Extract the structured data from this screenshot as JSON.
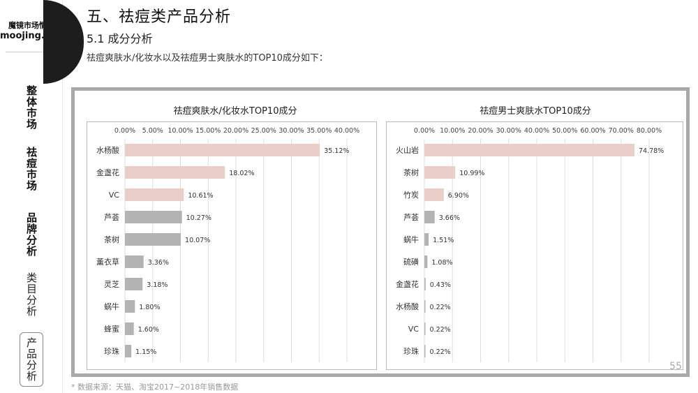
{
  "sidebar": {
    "logo_line1": "魔镜市场情报",
    "logo_line2": "moojing.com",
    "items": [
      {
        "label": "整体市场"
      },
      {
        "label": "祛痘市场"
      },
      {
        "label": "品牌分析"
      },
      {
        "label": "类目分析"
      },
      {
        "label": "产品分析"
      }
    ]
  },
  "header": {
    "title": "五、祛痘类产品分析",
    "subtitle": "5.1 成分分析",
    "description": "祛痘爽肤水/化妆水以及祛痘男士爽肤水的TOP10成分如下："
  },
  "page_number": "55",
  "footnote": "* 数据来源：天猫、淘宝2017~2018年销售数据",
  "colors": {
    "highlight_bar": "#e9cfc8",
    "normal_bar": "#b3b3b3",
    "gridline": "#dddddd",
    "frame": "#a9a9a9"
  },
  "chart_data": [
    {
      "type": "bar",
      "orientation": "horizontal",
      "title": "祛痘爽肤水/化妆水TOP10成分",
      "categories": [
        "水杨酸",
        "金盏花",
        "VC",
        "芦荟",
        "茶树",
        "薰衣草",
        "灵芝",
        "蜗牛",
        "蜂蜜",
        "珍珠"
      ],
      "values": [
        35.12,
        18.02,
        10.61,
        10.27,
        10.07,
        3.36,
        3.18,
        1.8,
        1.6,
        1.15
      ],
      "value_labels": [
        "35.12%",
        "18.02%",
        "10.61%",
        "10.27%",
        "10.07%",
        "3.36%",
        "3.18%",
        "1.80%",
        "1.60%",
        "1.15%"
      ],
      "highlight_count": 3,
      "xlim": [
        0,
        40
      ],
      "ticks": [
        "0.00%",
        "5.00%",
        "10.00%",
        "15.00%",
        "20.00%",
        "25.00%",
        "30.00%",
        "35.00%",
        "40.00%"
      ],
      "tick_values": [
        0,
        5,
        10,
        15,
        20,
        25,
        30,
        35,
        40
      ],
      "grid": true,
      "xaxis_position": "top"
    },
    {
      "type": "bar",
      "orientation": "horizontal",
      "title": "祛痘男士爽肤水TOP10成分",
      "categories": [
        "火山岩",
        "茶树",
        "竹炭",
        "芦荟",
        "蜗牛",
        "硫磺",
        "金盏花",
        "水杨酸",
        "VC",
        "珍珠"
      ],
      "values": [
        74.78,
        10.99,
        6.9,
        3.66,
        1.51,
        1.08,
        0.43,
        0.22,
        0.22,
        0.22
      ],
      "value_labels": [
        "74.78%",
        "10.99%",
        "6.90%",
        "3.66%",
        "1.51%",
        "1.08%",
        "0.43%",
        "0.22%",
        "0.22%",
        "0.22%"
      ],
      "highlight_count": 3,
      "xlim": [
        0,
        80
      ],
      "ticks": [
        "0.00%",
        "10.00%",
        "20.00%",
        "30.00%",
        "40.00%",
        "50.00%",
        "60.00%",
        "70.00%",
        "80.00%"
      ],
      "tick_values": [
        0,
        10,
        20,
        30,
        40,
        50,
        60,
        70,
        80
      ],
      "grid": true,
      "xaxis_position": "top"
    }
  ]
}
